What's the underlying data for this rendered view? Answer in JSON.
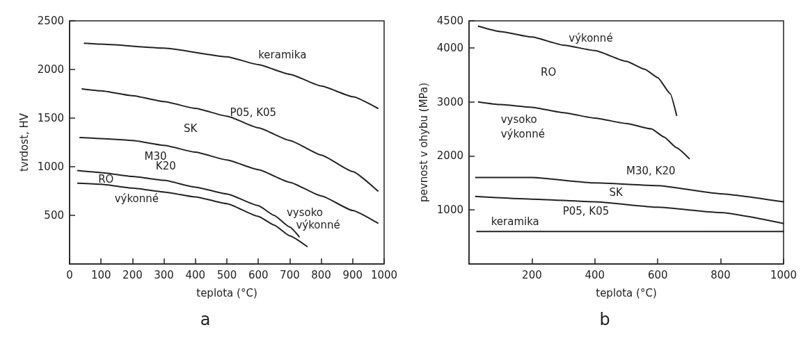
{
  "chart_data": [
    {
      "type": "line",
      "xlabel": "teplota (°C)",
      "ylabel": "tvrdost, HV",
      "xlim": [
        0,
        1000
      ],
      "ylim": [
        0,
        2500
      ],
      "xticks": [
        0,
        100,
        200,
        300,
        400,
        500,
        600,
        700,
        800,
        900,
        1000
      ],
      "yticks": [
        500,
        1000,
        1500,
        2000,
        2500
      ],
      "marker": "none",
      "line_style": "solid",
      "series": [
        {
          "color": "#222222",
          "x": [
            47,
            100,
            300,
            500,
            600,
            700,
            800,
            900,
            980
          ],
          "values": [
            2270,
            2260,
            2220,
            2130,
            2050,
            1950,
            1830,
            1720,
            1600
          ]
        },
        {
          "color": "#222222",
          "x": [
            40,
            100,
            200,
            300,
            400,
            500,
            600,
            700,
            800,
            900,
            980
          ],
          "values": [
            1800,
            1780,
            1730,
            1670,
            1600,
            1520,
            1400,
            1270,
            1120,
            950,
            750
          ]
        },
        {
          "color": "#222222",
          "x": [
            33,
            100,
            200,
            300,
            400,
            500,
            600,
            700,
            800,
            900,
            980
          ],
          "values": [
            1300,
            1290,
            1270,
            1220,
            1150,
            1070,
            970,
            840,
            700,
            550,
            420
          ]
        },
        {
          "color": "#222222",
          "x": [
            26,
            100,
            200,
            300,
            400,
            500,
            600,
            650,
            700,
            730
          ],
          "values": [
            960,
            940,
            900,
            860,
            790,
            720,
            600,
            500,
            380,
            280
          ]
        },
        {
          "color": "#222222",
          "x": [
            26,
            100,
            200,
            300,
            400,
            500,
            600,
            650,
            700,
            755
          ],
          "values": [
            830,
            820,
            780,
            740,
            690,
            620,
            490,
            400,
            290,
            180
          ]
        }
      ],
      "annotations": [
        "keramika",
        "P05, K05",
        "SK",
        "M30",
        "K20",
        "RO",
        "výkonné",
        "vysoko",
        "výkonné",
        "a"
      ]
    },
    {
      "type": "line",
      "xlabel": "teplota (°C)",
      "ylabel": "pevnost v ohybu (MPa)",
      "xlim": [
        0,
        1000
      ],
      "ylim": [
        0,
        4500
      ],
      "xticks": [
        200,
        400,
        600,
        800,
        1000
      ],
      "yticks": [
        1000,
        2000,
        3000,
        4000,
        4500
      ],
      "marker": "none",
      "line_style": "solid",
      "series": [
        {
          "color": "#222222",
          "x": [
            30,
            100,
            200,
            300,
            400,
            500,
            560,
            600,
            640,
            660
          ],
          "values": [
            4400,
            4300,
            4200,
            4050,
            3950,
            3750,
            3600,
            3450,
            3150,
            2750
          ]
        },
        {
          "color": "#222222",
          "x": [
            30,
            100,
            200,
            300,
            400,
            500,
            580,
            620,
            660,
            700
          ],
          "values": [
            3000,
            2950,
            2900,
            2800,
            2700,
            2600,
            2500,
            2350,
            2150,
            1950
          ]
        },
        {
          "color": "#222222",
          "x": [
            21,
            200,
            400,
            600,
            800,
            1000
          ],
          "values": [
            1600,
            1600,
            1500,
            1450,
            1300,
            1150
          ]
        },
        {
          "color": "#222222",
          "x": [
            21,
            200,
            400,
            600,
            800,
            1000
          ],
          "values": [
            1250,
            1200,
            1150,
            1050,
            950,
            750
          ]
        },
        {
          "color": "#222222",
          "x": [
            25,
            1000
          ],
          "values": [
            600,
            600
          ]
        }
      ],
      "annotations": [
        "výkonné",
        "RO",
        "vysoko",
        "výkonné",
        "M30, K20",
        "SK",
        "P05, K05",
        "keramika",
        "b"
      ]
    }
  ]
}
